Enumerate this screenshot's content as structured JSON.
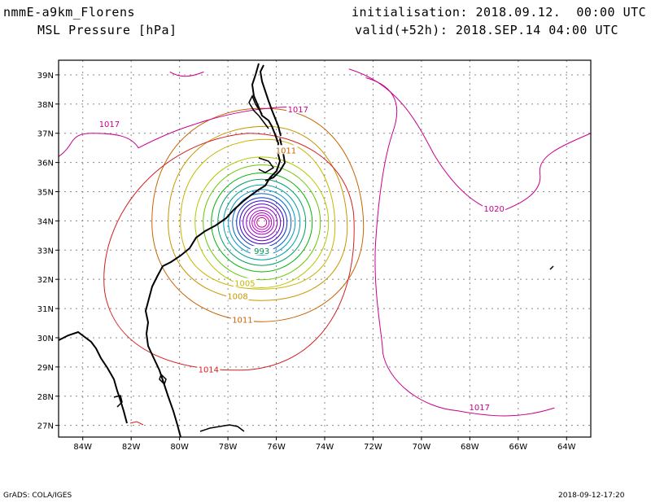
{
  "header": {
    "model": "nmmE-a9km_Florens",
    "variable": "MSL Pressure [hPa]",
    "init": "initialisation: 2018.09.12.  00:00 UTC",
    "valid": "valid(+52h): 2018.SEP.14 04:00 UTC"
  },
  "footer": {
    "software": "GrADS: COLA/IGES",
    "timestamp": "2018-09-12-17:20"
  },
  "map": {
    "lat_labels": [
      "39N",
      "38N",
      "37N",
      "36N",
      "35N",
      "34N",
      "33N",
      "32N",
      "31N",
      "30N",
      "29N",
      "28N",
      "27N"
    ],
    "lon_labels": [
      "84W",
      "82W",
      "80W",
      "78W",
      "76W",
      "74W",
      "72W",
      "70W",
      "68W",
      "66W",
      "64W"
    ],
    "lon_range": [
      -85,
      -63
    ],
    "lat_range": [
      26.6,
      39.5
    ],
    "storm_center": {
      "lon": -76.6,
      "lat": 33.95
    },
    "contour_labels": [
      {
        "text": "1017",
        "lon": -82.9,
        "lat": 37.3,
        "color": "#c8008c"
      },
      {
        "text": "1020",
        "lon": -67.0,
        "lat": 34.4,
        "color": "#c8008c"
      },
      {
        "text": "1017",
        "lon": -67.6,
        "lat": 27.6,
        "color": "#c8008c"
      },
      {
        "text": "1014",
        "lon": -78.8,
        "lat": 28.9,
        "color": "#d21e1e"
      },
      {
        "text": "1011",
        "lon": -77.4,
        "lat": 30.6,
        "color": "#c86400"
      },
      {
        "text": "1008",
        "lon": -77.6,
        "lat": 31.4,
        "color": "#c89600"
      },
      {
        "text": "1005",
        "lon": -77.3,
        "lat": 31.85,
        "color": "#c8b400"
      },
      {
        "text": "993",
        "lon": -76.6,
        "lat": 32.95,
        "color": "#009650"
      },
      {
        "text": "1011",
        "lon": -75.6,
        "lat": 36.4,
        "color": "#c86400"
      },
      {
        "text": "1017",
        "lon": -75.1,
        "lat": 37.8,
        "color": "#c8008c"
      }
    ]
  },
  "chart_data": {
    "type": "contour",
    "title": "MSL Pressure [hPa]",
    "contour_levels_hpa": [
      1020,
      1017,
      1014,
      1011,
      1008,
      1005,
      1002,
      999,
      996,
      993,
      990,
      987,
      984,
      981,
      978,
      975,
      972,
      969,
      966,
      963,
      960
    ],
    "labeled_levels_hpa": [
      1020,
      1017,
      1014,
      1011,
      1008,
      1005,
      993
    ],
    "low_center": {
      "lon": -76.6,
      "lat": 33.95
    },
    "colors": {
      "1020": "#c8008c",
      "1017": "#c8008c",
      "1014": "#d21e1e",
      "1011": "#c86400",
      "1008": "#c89600",
      "1005": "#c8b400"
    }
  }
}
